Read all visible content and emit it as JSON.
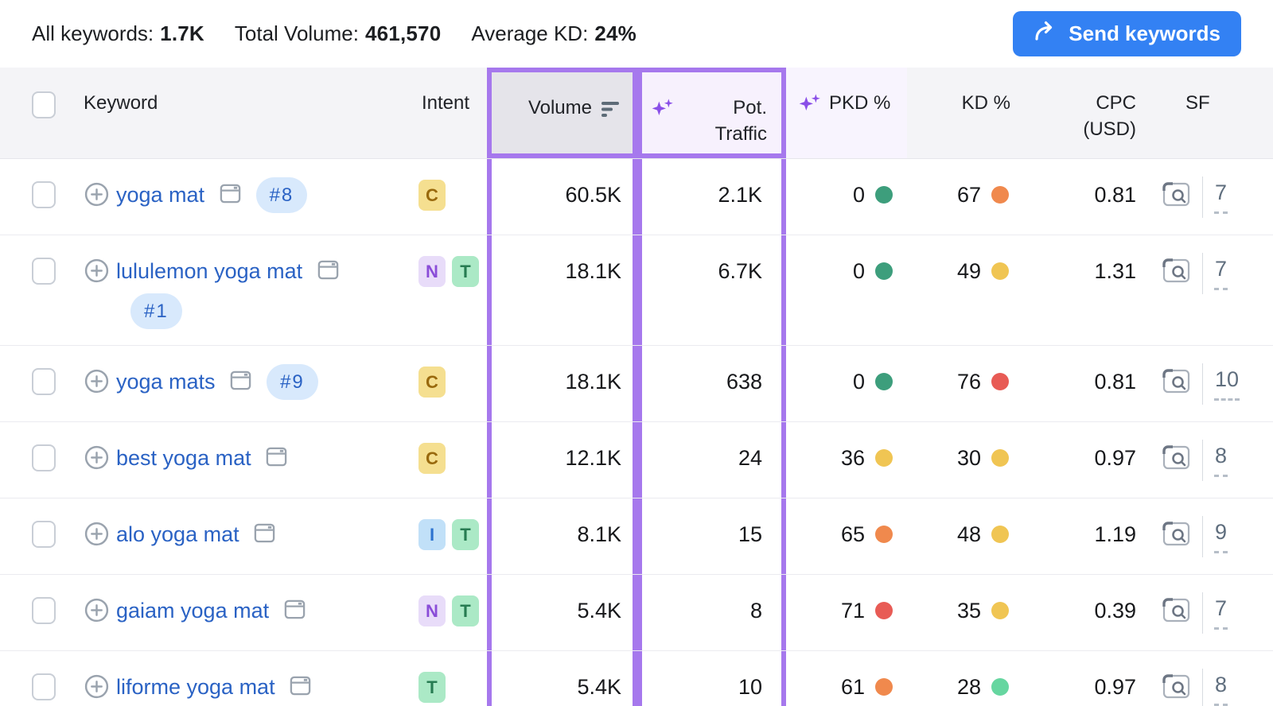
{
  "topbar": {
    "stats": [
      {
        "label": "All keywords:",
        "value": "1.7K"
      },
      {
        "label": "Total Volume:",
        "value": "461,570"
      },
      {
        "label": "Average KD:",
        "value": "24%"
      }
    ],
    "send_button": "Send keywords"
  },
  "table": {
    "headers": {
      "keyword": "Keyword",
      "intent": "Intent",
      "volume": "Volume",
      "pot_traffic": "Pot. Traffic",
      "pkd": "PKD %",
      "kd": "KD %",
      "cpc": "CPC (USD)",
      "sf": "SF"
    },
    "rows": [
      {
        "keyword": "yoga mat",
        "position": "#8",
        "intents": [
          {
            "letter": "C",
            "type": "commercial"
          }
        ],
        "volume": "60.5K",
        "pot_traffic": "2.1K",
        "pkd": "0",
        "pkd_level": "green",
        "kd": "67",
        "kd_level": "orange",
        "cpc": "0.81",
        "sf": "7"
      },
      {
        "keyword": "lululemon yoga mat",
        "position": "#1",
        "intents": [
          {
            "letter": "N",
            "type": "navigational"
          },
          {
            "letter": "T",
            "type": "transactional"
          }
        ],
        "volume": "18.1K",
        "pot_traffic": "6.7K",
        "pkd": "0",
        "pkd_level": "green",
        "kd": "49",
        "kd_level": "yellow",
        "cpc": "1.31",
        "sf": "7"
      },
      {
        "keyword": "yoga mats",
        "position": "#9",
        "intents": [
          {
            "letter": "C",
            "type": "commercial"
          }
        ],
        "volume": "18.1K",
        "pot_traffic": "638",
        "pkd": "0",
        "pkd_level": "green",
        "kd": "76",
        "kd_level": "red",
        "cpc": "0.81",
        "sf": "10"
      },
      {
        "keyword": "best yoga mat",
        "position": null,
        "intents": [
          {
            "letter": "C",
            "type": "commercial"
          }
        ],
        "volume": "12.1K",
        "pot_traffic": "24",
        "pkd": "36",
        "pkd_level": "yellow",
        "kd": "30",
        "kd_level": "yellow",
        "cpc": "0.97",
        "sf": "8"
      },
      {
        "keyword": "alo yoga mat",
        "position": null,
        "intents": [
          {
            "letter": "I",
            "type": "informational"
          },
          {
            "letter": "T",
            "type": "transactional"
          }
        ],
        "volume": "8.1K",
        "pot_traffic": "15",
        "pkd": "65",
        "pkd_level": "orange",
        "kd": "48",
        "kd_level": "yellow",
        "cpc": "1.19",
        "sf": "9"
      },
      {
        "keyword": "gaiam yoga mat",
        "position": null,
        "intents": [
          {
            "letter": "N",
            "type": "navigational"
          },
          {
            "letter": "T",
            "type": "transactional"
          }
        ],
        "volume": "5.4K",
        "pot_traffic": "8",
        "pkd": "71",
        "pkd_level": "red",
        "kd": "35",
        "kd_level": "yellow",
        "cpc": "0.39",
        "sf": "7"
      },
      {
        "keyword": "liforme yoga mat",
        "position": null,
        "intents": [
          {
            "letter": "T",
            "type": "transactional"
          }
        ],
        "volume": "5.4K",
        "pot_traffic": "10",
        "pkd": "61",
        "pkd_level": "orange",
        "kd": "28",
        "kd_level": "lightGreen",
        "cpc": "0.97",
        "sf": "8"
      }
    ]
  },
  "colors": {
    "highlight_purple": "#a678ed",
    "sparkle_purple": "#8a4fe8",
    "button_blue": "#3381f3",
    "link_blue": "#2a62c4",
    "dots": {
      "green": "#3d9e7c",
      "lightGreen": "#66d6a0",
      "yellow": "#f0c553",
      "orange": "#f0894d",
      "red": "#e85b55"
    },
    "intents": {
      "C": {
        "bg": "#f5df90",
        "fg": "#99690d"
      },
      "N": {
        "bg": "#e8dcf9",
        "fg": "#8a4dd8"
      },
      "T": {
        "bg": "#abe9c6",
        "fg": "#277c52"
      },
      "I": {
        "bg": "#c1e0f8",
        "fg": "#2d73cf"
      }
    }
  }
}
